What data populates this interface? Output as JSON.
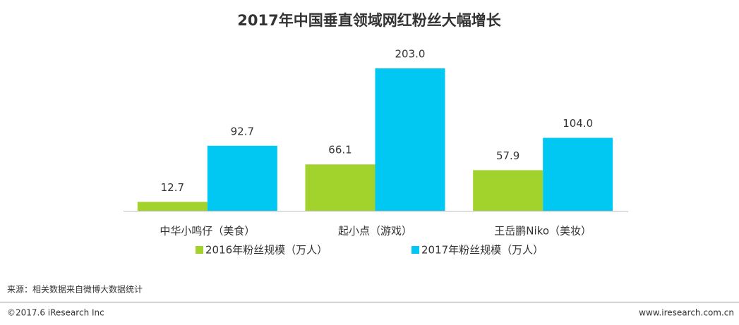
{
  "chart_data": {
    "type": "bar",
    "title": "2017年中国垂直领域网红粉丝大幅增长",
    "categories": [
      "中华小鸣仔（美食）",
      "起小点（游戏）",
      "王岳鹏Niko（美妆）"
    ],
    "series": [
      {
        "name": "2016年粉丝规模（万人）",
        "color": "#a2d22c",
        "values": [
          12.7,
          66.1,
          57.9
        ],
        "value_labels": [
          "12.7",
          "66.1",
          "57.9"
        ]
      },
      {
        "name": "2017年粉丝规模（万人）",
        "color": "#00c8f2",
        "values": [
          92.7,
          203.0,
          104.0
        ],
        "value_labels": [
          "92.7",
          "203.0",
          "104.0"
        ]
      }
    ]
  },
  "source": "来源：相关数据来自微博大数据统计",
  "footer": {
    "copyright": "©2017.6 iResearch Inc",
    "website": "www.iresearch.com.cn"
  }
}
